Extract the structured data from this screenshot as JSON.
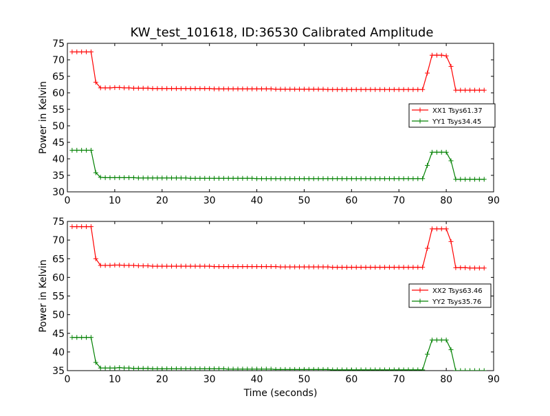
{
  "figure": {
    "title": "KW_test_101618, ID:36530 Calibrated Amplitude"
  },
  "chart_data": [
    {
      "type": "line",
      "title": "KW_test_101618, ID:36530 Calibrated Amplitude",
      "xlabel": "",
      "ylabel": "Power in Kelvin",
      "xlim": [
        0,
        90
      ],
      "ylim": [
        30,
        75
      ],
      "xticks": [
        "0",
        "10",
        "20",
        "30",
        "40",
        "50",
        "60",
        "70",
        "80",
        "90"
      ],
      "yticks": [
        "30",
        "35",
        "40",
        "45",
        "50",
        "55",
        "60",
        "65",
        "70",
        "75"
      ],
      "grid": false,
      "legend_position": "center-right",
      "series": [
        {
          "name": "XX1 Tsys61.37",
          "color": "#ff0000",
          "marker": "plus",
          "x": [
            1,
            2,
            3,
            4,
            5,
            6,
            7,
            8,
            9,
            10,
            11,
            12,
            13,
            14,
            15,
            16,
            17,
            18,
            19,
            20,
            21,
            22,
            23,
            24,
            25,
            26,
            27,
            28,
            29,
            30,
            31,
            32,
            33,
            34,
            35,
            36,
            37,
            38,
            39,
            40,
            41,
            42,
            43,
            44,
            45,
            46,
            47,
            48,
            49,
            50,
            51,
            52,
            53,
            54,
            55,
            56,
            57,
            58,
            59,
            60,
            61,
            62,
            63,
            64,
            65,
            66,
            67,
            68,
            69,
            70,
            71,
            72,
            73,
            74,
            75,
            76,
            77,
            78,
            79,
            80,
            81,
            82,
            83,
            84,
            85,
            86,
            87,
            88
          ],
          "y": [
            72.4,
            72.4,
            72.4,
            72.4,
            72.4,
            63.2,
            61.5,
            61.5,
            61.5,
            61.6,
            61.6,
            61.5,
            61.5,
            61.4,
            61.4,
            61.4,
            61.4,
            61.3,
            61.3,
            61.3,
            61.3,
            61.3,
            61.3,
            61.3,
            61.3,
            61.3,
            61.3,
            61.3,
            61.3,
            61.3,
            61.2,
            61.2,
            61.2,
            61.2,
            61.2,
            61.2,
            61.2,
            61.2,
            61.2,
            61.2,
            61.2,
            61.2,
            61.2,
            61.1,
            61.1,
            61.1,
            61.1,
            61.1,
            61.1,
            61.1,
            61.1,
            61.1,
            61.1,
            61.1,
            61.0,
            61.0,
            61.0,
            61.0,
            61.0,
            61.0,
            61.0,
            61.0,
            61.0,
            61.0,
            61.0,
            61.0,
            61.0,
            61.0,
            61.0,
            61.0,
            61.0,
            61.0,
            61.0,
            61.0,
            61.0,
            66.0,
            71.4,
            71.4,
            71.4,
            71.2,
            68.0,
            60.8,
            60.8,
            60.8,
            60.8,
            60.8,
            60.8,
            60.8
          ]
        },
        {
          "name": "YY1 Tsys34.45",
          "color": "#008000",
          "marker": "plus",
          "x": [
            1,
            2,
            3,
            4,
            5,
            6,
            7,
            8,
            9,
            10,
            11,
            12,
            13,
            14,
            15,
            16,
            17,
            18,
            19,
            20,
            21,
            22,
            23,
            24,
            25,
            26,
            27,
            28,
            29,
            30,
            31,
            32,
            33,
            34,
            35,
            36,
            37,
            38,
            39,
            40,
            41,
            42,
            43,
            44,
            45,
            46,
            47,
            48,
            49,
            50,
            51,
            52,
            53,
            54,
            55,
            56,
            57,
            58,
            59,
            60,
            61,
            62,
            63,
            64,
            65,
            66,
            67,
            68,
            69,
            70,
            71,
            72,
            73,
            74,
            75,
            76,
            77,
            78,
            79,
            80,
            81,
            82,
            83,
            84,
            85,
            86,
            87,
            88
          ],
          "y": [
            42.6,
            42.6,
            42.6,
            42.6,
            42.6,
            35.8,
            34.4,
            34.3,
            34.3,
            34.3,
            34.3,
            34.3,
            34.3,
            34.3,
            34.2,
            34.2,
            34.2,
            34.2,
            34.2,
            34.2,
            34.2,
            34.2,
            34.2,
            34.2,
            34.2,
            34.1,
            34.1,
            34.1,
            34.1,
            34.1,
            34.1,
            34.1,
            34.1,
            34.1,
            34.1,
            34.1,
            34.1,
            34.1,
            34.1,
            34.0,
            34.0,
            34.0,
            34.0,
            34.0,
            34.0,
            34.0,
            34.0,
            34.0,
            34.0,
            34.0,
            34.0,
            34.0,
            34.0,
            34.0,
            34.0,
            34.0,
            34.0,
            34.0,
            34.0,
            34.0,
            34.0,
            34.0,
            34.0,
            34.0,
            34.0,
            34.0,
            34.0,
            34.0,
            34.0,
            34.0,
            34.0,
            34.0,
            34.0,
            34.0,
            34.0,
            38.0,
            42.0,
            42.0,
            42.0,
            42.0,
            39.4,
            33.8,
            33.8,
            33.8,
            33.8,
            33.8,
            33.8,
            33.8
          ]
        }
      ]
    },
    {
      "type": "line",
      "title": "",
      "xlabel": "Time (seconds)",
      "ylabel": "Power in Kelvin",
      "xlim": [
        0,
        90
      ],
      "ylim": [
        35,
        75
      ],
      "xticks": [
        "0",
        "10",
        "20",
        "30",
        "40",
        "50",
        "60",
        "70",
        "80",
        "90"
      ],
      "yticks": [
        "35",
        "40",
        "45",
        "50",
        "55",
        "60",
        "65",
        "70",
        "75"
      ],
      "grid": false,
      "legend_position": "center-right",
      "series": [
        {
          "name": "XX2 Tsys63.46",
          "color": "#ff0000",
          "marker": "plus",
          "x": [
            1,
            2,
            3,
            4,
            5,
            6,
            7,
            8,
            9,
            10,
            11,
            12,
            13,
            14,
            15,
            16,
            17,
            18,
            19,
            20,
            21,
            22,
            23,
            24,
            25,
            26,
            27,
            28,
            29,
            30,
            31,
            32,
            33,
            34,
            35,
            36,
            37,
            38,
            39,
            40,
            41,
            42,
            43,
            44,
            45,
            46,
            47,
            48,
            49,
            50,
            51,
            52,
            53,
            54,
            55,
            56,
            57,
            58,
            59,
            60,
            61,
            62,
            63,
            64,
            65,
            66,
            67,
            68,
            69,
            70,
            71,
            72,
            73,
            74,
            75,
            76,
            77,
            78,
            79,
            80,
            81,
            82,
            83,
            84,
            85,
            86,
            87,
            88
          ],
          "y": [
            73.6,
            73.6,
            73.6,
            73.6,
            73.6,
            65.0,
            63.2,
            63.2,
            63.2,
            63.3,
            63.3,
            63.2,
            63.2,
            63.2,
            63.1,
            63.1,
            63.1,
            63.0,
            63.0,
            63.0,
            63.0,
            63.0,
            63.0,
            63.0,
            63.0,
            63.0,
            63.0,
            63.0,
            63.0,
            63.0,
            62.9,
            62.9,
            62.9,
            62.9,
            62.9,
            62.9,
            62.9,
            62.9,
            62.9,
            62.9,
            62.9,
            62.9,
            62.9,
            62.9,
            62.8,
            62.8,
            62.8,
            62.8,
            62.8,
            62.8,
            62.8,
            62.8,
            62.8,
            62.8,
            62.8,
            62.7,
            62.7,
            62.7,
            62.7,
            62.7,
            62.7,
            62.7,
            62.7,
            62.7,
            62.7,
            62.7,
            62.7,
            62.7,
            62.7,
            62.7,
            62.7,
            62.7,
            62.7,
            62.7,
            62.7,
            67.8,
            73.0,
            73.0,
            73.0,
            73.0,
            69.6,
            62.6,
            62.6,
            62.6,
            62.5,
            62.5,
            62.5,
            62.5
          ]
        },
        {
          "name": "YY2 Tsys35.76",
          "color": "#008000",
          "marker": "plus",
          "x": [
            1,
            2,
            3,
            4,
            5,
            6,
            7,
            8,
            9,
            10,
            11,
            12,
            13,
            14,
            15,
            16,
            17,
            18,
            19,
            20,
            21,
            22,
            23,
            24,
            25,
            26,
            27,
            28,
            29,
            30,
            31,
            32,
            33,
            34,
            35,
            36,
            37,
            38,
            39,
            40,
            41,
            42,
            43,
            44,
            45,
            46,
            47,
            48,
            49,
            50,
            51,
            52,
            53,
            54,
            55,
            56,
            57,
            58,
            59,
            60,
            61,
            62,
            63,
            64,
            65,
            66,
            67,
            68,
            69,
            70,
            71,
            72,
            73,
            74,
            75,
            76,
            77,
            78,
            79,
            80,
            81,
            82,
            83,
            84,
            85,
            86,
            87,
            88
          ],
          "y": [
            43.9,
            43.9,
            43.9,
            43.9,
            43.9,
            37.2,
            35.7,
            35.7,
            35.7,
            35.7,
            35.8,
            35.7,
            35.7,
            35.6,
            35.6,
            35.6,
            35.6,
            35.5,
            35.5,
            35.5,
            35.5,
            35.5,
            35.5,
            35.5,
            35.5,
            35.5,
            35.5,
            35.5,
            35.5,
            35.5,
            35.5,
            35.5,
            35.5,
            35.4,
            35.4,
            35.4,
            35.4,
            35.4,
            35.4,
            35.4,
            35.4,
            35.4,
            35.4,
            35.3,
            35.3,
            35.3,
            35.3,
            35.3,
            35.3,
            35.3,
            35.3,
            35.3,
            35.3,
            35.3,
            35.3,
            35.2,
            35.2,
            35.2,
            35.2,
            35.2,
            35.2,
            35.2,
            35.2,
            35.2,
            35.2,
            35.2,
            35.2,
            35.2,
            35.2,
            35.2,
            35.2,
            35.2,
            35.2,
            35.2,
            35.2,
            39.4,
            43.2,
            43.2,
            43.2,
            43.2,
            40.6,
            35.0,
            35.0,
            35.0,
            35.0,
            35.0,
            35.0,
            35.0
          ]
        }
      ]
    }
  ]
}
